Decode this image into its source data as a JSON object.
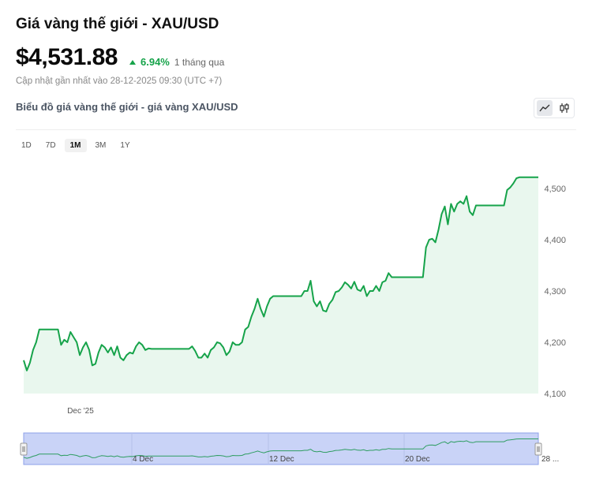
{
  "header": {
    "title": "Giá vàng thế giới - XAU/USD",
    "price": "$4,531.88",
    "change_pct": "6.94%",
    "change_period": "1 tháng qua",
    "updated": "Cập nhật gần nhất vào 28-12-2025 09:30 (UTC +7)",
    "subtitle": "Biểu đồ giá vàng thế giới - giá vàng XAU/USD"
  },
  "controls": {
    "chart_types": [
      "line-chart-icon",
      "candlestick-icon"
    ],
    "active_chart_type": "line-chart-icon",
    "ranges": [
      "1D",
      "7D",
      "1M",
      "3M",
      "1Y"
    ],
    "active_range": "1M"
  },
  "colors": {
    "line": "#16a34a",
    "area": "#e9f7ee",
    "navigator_fill": "#c9d3f7",
    "navigator_border": "#8da0e8"
  },
  "chart_data": {
    "type": "line",
    "y_ticks": [
      "4,100",
      "4,200",
      "4,300",
      "4,400",
      "4,500"
    ],
    "x_ticks": [
      "Dec '25"
    ],
    "ylim": [
      4100,
      4560
    ],
    "y": [
      4165,
      4145,
      4160,
      4185,
      4200,
      4225,
      4225,
      4225,
      4225,
      4225,
      4225,
      4225,
      4195,
      4205,
      4200,
      4220,
      4210,
      4200,
      4175,
      4190,
      4200,
      4185,
      4155,
      4158,
      4180,
      4195,
      4190,
      4180,
      4190,
      4175,
      4192,
      4170,
      4165,
      4175,
      4180,
      4178,
      4192,
      4200,
      4195,
      4185,
      4188,
      4187,
      4187,
      4187,
      4187,
      4187,
      4187,
      4187,
      4187,
      4187,
      4187,
      4187,
      4187,
      4187,
      4192,
      4183,
      4170,
      4170,
      4178,
      4170,
      4185,
      4190,
      4200,
      4198,
      4190,
      4175,
      4182,
      4200,
      4195,
      4195,
      4200,
      4225,
      4230,
      4250,
      4265,
      4285,
      4265,
      4250,
      4270,
      4285,
      4290,
      4290,
      4290,
      4290,
      4290,
      4290,
      4290,
      4290,
      4290,
      4290,
      4300,
      4300,
      4320,
      4280,
      4270,
      4280,
      4262,
      4260,
      4275,
      4283,
      4298,
      4300,
      4307,
      4317,
      4312,
      4305,
      4318,
      4303,
      4300,
      4310,
      4290,
      4300,
      4300,
      4310,
      4300,
      4317,
      4320,
      4335,
      4327,
      4327,
      4327,
      4327,
      4327,
      4327,
      4327,
      4327,
      4327,
      4327,
      4327,
      4385,
      4400,
      4402,
      4395,
      4420,
      4450,
      4465,
      4430,
      4470,
      4455,
      4470,
      4475,
      4470,
      4485,
      4455,
      4448,
      4467,
      4467,
      4467,
      4467,
      4467,
      4467,
      4467,
      4467,
      4467,
      4467,
      4497,
      4502,
      4510,
      4520,
      4522,
      4522,
      4522,
      4522,
      4522,
      4522,
      4522
    ]
  },
  "navigator": {
    "labels": [
      "4 Dec",
      "12 Dec",
      "20 Dec",
      "28 ..."
    ]
  }
}
